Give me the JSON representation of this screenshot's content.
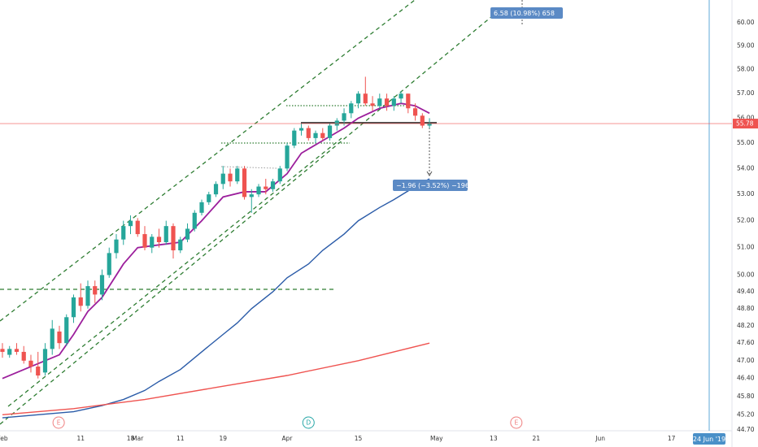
{
  "chart_data": {
    "type": "candlestick",
    "log_scale": true,
    "grid": false,
    "up_color": "#26a69a",
    "down_color": "#ef5350",
    "x": [
      0,
      1,
      2,
      3,
      4,
      5,
      6,
      7,
      8,
      9,
      10,
      11,
      12,
      13,
      14,
      15,
      16,
      17,
      18,
      19,
      20,
      21,
      22,
      23,
      24,
      25,
      26,
      27,
      28,
      29,
      30,
      31,
      32,
      33,
      34,
      35,
      36,
      37,
      38,
      39,
      40,
      41,
      42,
      43,
      44,
      45,
      46,
      47,
      48,
      49,
      50,
      51,
      52,
      53,
      54,
      55,
      56,
      57,
      58,
      59,
      60
    ],
    "open": [
      47.4,
      47.2,
      47.4,
      47.3,
      47.0,
      46.8,
      46.6,
      47.4,
      48.0,
      47.6,
      48.5,
      49.2,
      48.9,
      49.6,
      49.3,
      50.0,
      50.8,
      51.3,
      51.8,
      52.0,
      51.5,
      51.0,
      51.4,
      51.2,
      51.8,
      50.9,
      51.3,
      51.7,
      52.3,
      52.7,
      53.0,
      53.4,
      53.8,
      53.5,
      54.0,
      52.9,
      53.0,
      53.3,
      53.2,
      53.5,
      54.0,
      54.9,
      55.5,
      55.6,
      55.2,
      55.4,
      55.2,
      55.7,
      55.9,
      56.2,
      56.6,
      57.0,
      56.6,
      56.5,
      56.8,
      56.5,
      56.8,
      57.0,
      56.4,
      56.1,
      55.7
    ],
    "high": [
      47.6,
      47.5,
      47.6,
      47.5,
      47.2,
      47.3,
      47.6,
      48.4,
      48.2,
      48.6,
      49.3,
      49.7,
      49.8,
      49.8,
      50.2,
      51.0,
      51.5,
      52.0,
      52.2,
      52.1,
      51.8,
      51.5,
      51.7,
      52.0,
      51.9,
      51.4,
      51.9,
      52.4,
      52.8,
      53.1,
      53.5,
      54.1,
      54.0,
      54.1,
      54.1,
      53.2,
      53.4,
      53.6,
      53.6,
      54.1,
      55.0,
      55.6,
      55.8,
      55.7,
      55.5,
      55.6,
      55.8,
      56.0,
      56.4,
      56.7,
      57.1,
      57.7,
      56.9,
      57.0,
      57.0,
      56.9,
      57.1,
      57.0,
      56.6,
      56.2,
      56.0
    ],
    "low": [
      47.1,
      47.1,
      47.2,
      46.9,
      46.6,
      46.4,
      46.5,
      47.2,
      47.4,
      47.5,
      48.3,
      48.7,
      48.8,
      49.0,
      49.1,
      49.9,
      50.6,
      51.1,
      51.5,
      51.4,
      50.9,
      50.8,
      51.0,
      51.1,
      50.6,
      50.8,
      51.2,
      51.6,
      52.2,
      52.6,
      52.9,
      53.2,
      53.3,
      53.4,
      52.8,
      52.3,
      52.9,
      53.0,
      53.1,
      53.4,
      53.9,
      54.8,
      55.3,
      55.1,
      55.0,
      55.1,
      55.1,
      55.5,
      55.7,
      56.0,
      56.4,
      56.5,
      56.3,
      56.4,
      56.3,
      56.3,
      56.6,
      56.2,
      55.9,
      55.6,
      55.6
    ],
    "close": [
      47.3,
      47.4,
      47.3,
      47.0,
      46.8,
      46.5,
      47.4,
      48.1,
      47.6,
      48.5,
      49.2,
      48.9,
      49.6,
      49.3,
      50.0,
      50.8,
      51.3,
      51.8,
      52.0,
      51.5,
      51.0,
      51.4,
      51.2,
      51.8,
      50.9,
      51.3,
      51.7,
      52.3,
      52.7,
      53.0,
      53.4,
      53.8,
      53.5,
      54.0,
      52.9,
      53.0,
      53.3,
      53.2,
      53.5,
      54.0,
      54.9,
      55.5,
      55.6,
      55.2,
      55.4,
      55.2,
      55.7,
      55.9,
      56.2,
      56.6,
      57.0,
      56.6,
      56.5,
      56.8,
      56.5,
      56.8,
      57.0,
      56.4,
      56.1,
      55.7,
      55.78
    ],
    "series": [
      {
        "color": "#9c1f9c",
        "x": [
          0,
          5,
          8,
          10,
          12,
          14,
          17,
          19,
          22,
          25,
          28,
          31,
          34,
          37,
          40,
          42,
          45,
          48,
          50,
          53,
          56,
          58,
          60
        ],
        "values": [
          46.4,
          46.9,
          47.2,
          47.9,
          48.7,
          49.2,
          50.4,
          51.0,
          51.1,
          51.2,
          52.0,
          52.9,
          53.1,
          53.1,
          53.8,
          54.6,
          55.1,
          55.6,
          56.0,
          56.4,
          56.6,
          56.5,
          56.2
        ]
      },
      {
        "color": "#2a5ba8",
        "x": [
          0,
          5,
          10,
          14,
          17,
          20,
          22,
          25,
          27,
          29,
          31,
          33,
          35,
          38,
          40,
          43,
          45,
          48,
          50,
          53,
          55,
          58,
          60
        ],
        "values": [
          45.1,
          45.2,
          45.3,
          45.5,
          45.7,
          46.0,
          46.3,
          46.7,
          47.1,
          47.5,
          47.9,
          48.3,
          48.8,
          49.4,
          49.9,
          50.4,
          50.9,
          51.5,
          52.0,
          52.5,
          52.8,
          53.3,
          53.6
        ]
      },
      {
        "color": "#ef5350",
        "x": [
          0,
          10,
          20,
          30,
          40,
          50,
          60
        ],
        "values": [
          45.2,
          45.4,
          45.7,
          46.1,
          46.5,
          47.0,
          47.6
        ]
      }
    ],
    "last_price": 55.78,
    "xlim": [
      -0.34,
      102.5
    ],
    "ylim": [
      44.68,
      60.99
    ],
    "xticks": [
      {
        "value": 0,
        "label": "Feb"
      },
      11,
      18,
      {
        "value": 19,
        "label": "Mar"
      },
      {
        "value": 25,
        "label": "11"
      },
      {
        "value": 31,
        "label": "19"
      },
      {
        "value": 40,
        "label": "Apr"
      },
      {
        "value": 50,
        "label": "15"
      },
      {
        "value": 61,
        "label": "May"
      },
      {
        "value": 69,
        "label": "13"
      },
      {
        "value": 75,
        "label": "21"
      },
      {
        "value": 84,
        "label": "Jun"
      },
      {
        "value": 94,
        "label": "17"
      }
    ],
    "yticks": [
      {
        "value": 44.7,
        "label": "44.70"
      },
      {
        "value": 45.2,
        "label": "45.20"
      },
      {
        "value": 45.8,
        "label": "45.80"
      },
      {
        "value": 46.4,
        "label": "46.40"
      },
      {
        "value": 47,
        "label": "47.00"
      },
      {
        "value": 47.6,
        "label": "47.60"
      },
      {
        "value": 48.2,
        "label": "48.20"
      },
      {
        "value": 48.8,
        "label": "48.80"
      },
      {
        "value": 49.4,
        "label": "49.40"
      },
      {
        "value": 50,
        "label": "50.00"
      },
      {
        "value": 51,
        "label": "51.00"
      },
      {
        "value": 52,
        "label": "52.00"
      },
      {
        "value": 53,
        "label": "53.00"
      },
      {
        "value": 54,
        "label": "54.00"
      },
      {
        "value": 55,
        "label": "55.00"
      },
      {
        "value": 56,
        "label": "56.00"
      },
      {
        "value": 57,
        "label": "57.00"
      },
      {
        "value": 58,
        "label": "58.00"
      },
      {
        "value": 59,
        "label": "59.00"
      },
      {
        "value": 60,
        "label": "60.00"
      }
    ],
    "events": [
      {
        "label": "E",
        "x": 7.9
      },
      {
        "label": "D",
        "x": 43
      },
      {
        "label": "E",
        "x": 72.2
      }
    ],
    "measure_up": "6.58 (10.98%) 658",
    "measure_down": "−1.96 (−3.52%) −196",
    "crosshair_date": "24 Jun '19"
  }
}
